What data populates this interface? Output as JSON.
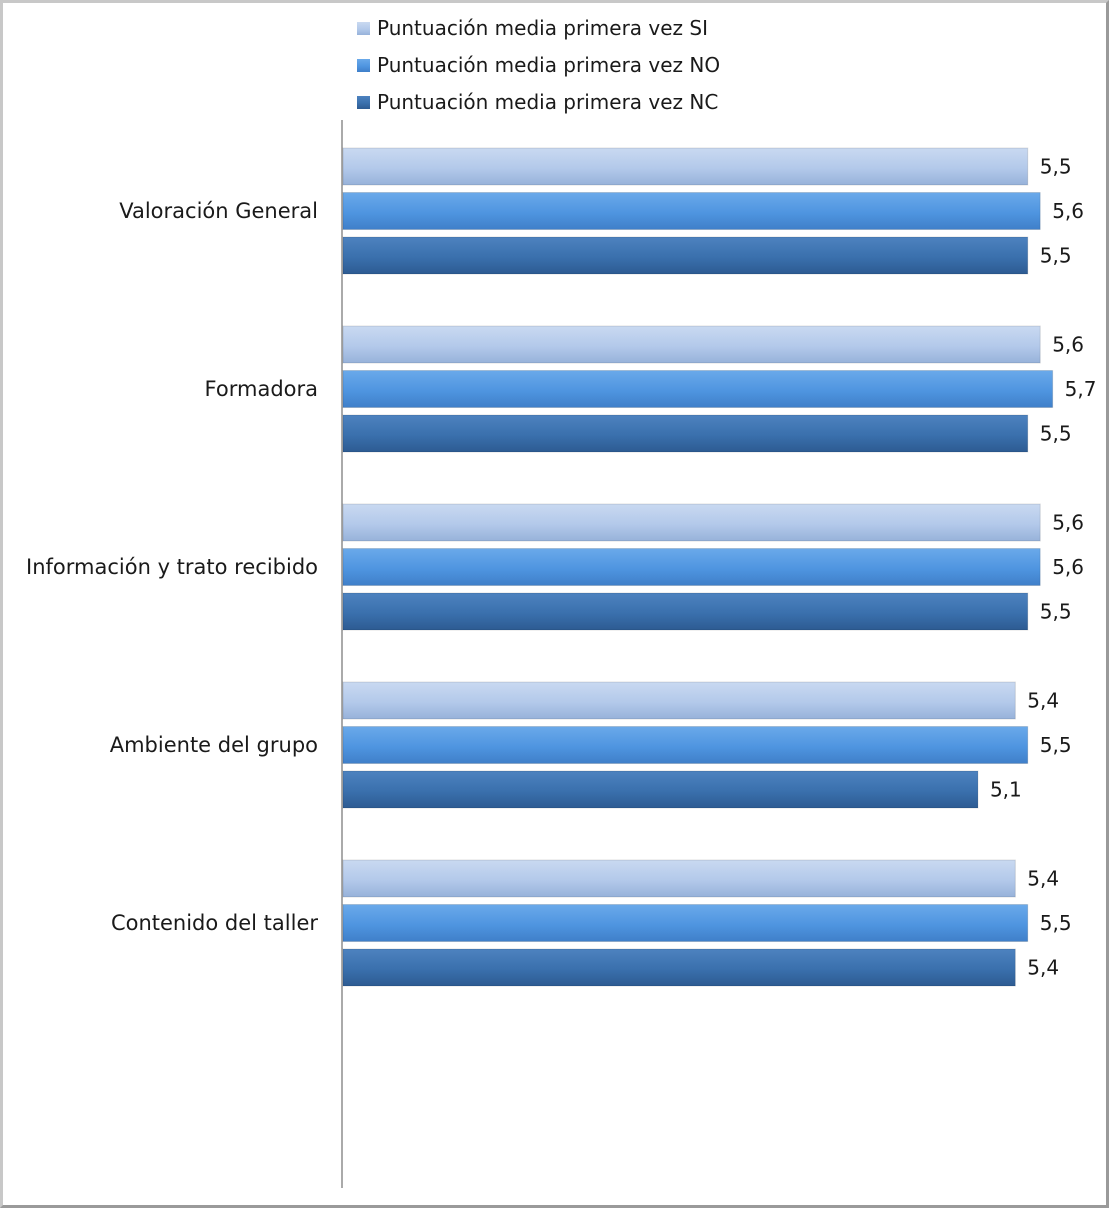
{
  "chart_data": {
    "type": "bar",
    "orientation": "horizontal",
    "categories": [
      "Valoración General",
      "Formadora",
      "Información y trato recibido",
      "Ambiente del grupo",
      "Contenido del taller"
    ],
    "series": [
      {
        "name": "Puntuación media primera vez SI",
        "color": "#b3c9ea",
        "values": [
          5.5,
          5.6,
          5.6,
          5.4,
          5.4
        ],
        "labels": [
          "5,5",
          "5,6",
          "5,6",
          "5,4",
          "5,4"
        ]
      },
      {
        "name": "Puntuación media primera vez NO",
        "color": "#4f95e0",
        "values": [
          5.6,
          5.7,
          5.6,
          5.5,
          5.5
        ],
        "labels": [
          "5,6",
          "5,7",
          "5,6",
          "5,5",
          "5,5"
        ]
      },
      {
        "name": "Puntuación media primera vez NC",
        "color": "#3a70ad",
        "values": [
          5.5,
          5.5,
          5.5,
          5.1,
          5.4
        ],
        "labels": [
          "5,5",
          "5,5",
          "5,5",
          "5,1",
          "5,4"
        ]
      }
    ],
    "xlim": [
      0,
      5.7
    ],
    "legend_position": "top",
    "grid": false,
    "title": "",
    "xlabel": "",
    "ylabel": ""
  }
}
